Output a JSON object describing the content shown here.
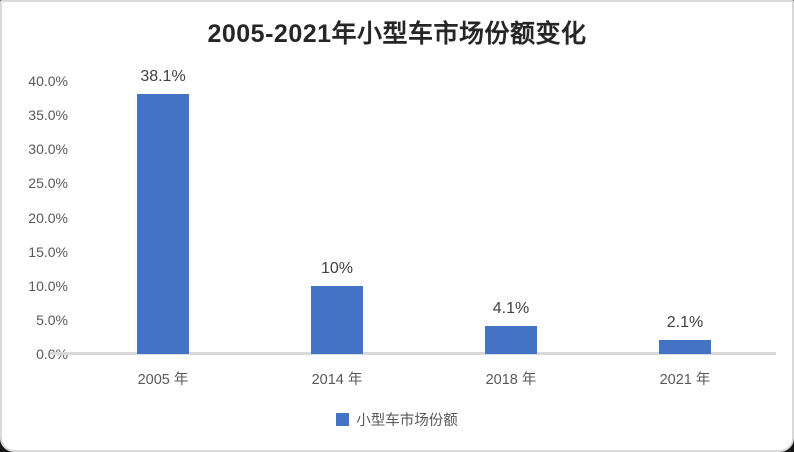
{
  "page": {
    "background_color": "#161616",
    "card_background": "#ffffff",
    "card_border_color": "#d9d9d9"
  },
  "chart_data": {
    "type": "bar",
    "title": "2005-2021年小型车市场份额变化",
    "categories": [
      "2005 年",
      "2014 年",
      "2018 年",
      "2021 年"
    ],
    "values": [
      38.1,
      10,
      4.1,
      2.1
    ],
    "data_labels": [
      "38.1%",
      "10%",
      "4.1%",
      "2.1%"
    ],
    "series_name": "小型车市场份额",
    "y_ticks": [
      "0.0%",
      "5.0%",
      "10.0%",
      "15.0%",
      "20.0%",
      "25.0%",
      "30.0%",
      "35.0%",
      "40.0%"
    ],
    "y_tick_values": [
      0,
      5,
      10,
      15,
      20,
      25,
      30,
      35,
      40
    ],
    "ylim": [
      0,
      40
    ],
    "xlabel": "",
    "ylabel": "",
    "grid": false,
    "legend_position": "bottom",
    "bar_color": "#4472c4",
    "axis_line_color": "#d9d9d9",
    "label_color": "#404040",
    "tick_color": "#595959",
    "title_color": "#262626"
  },
  "legend": {
    "label": "小型车市场份额",
    "swatch_color": "#4472c4"
  }
}
